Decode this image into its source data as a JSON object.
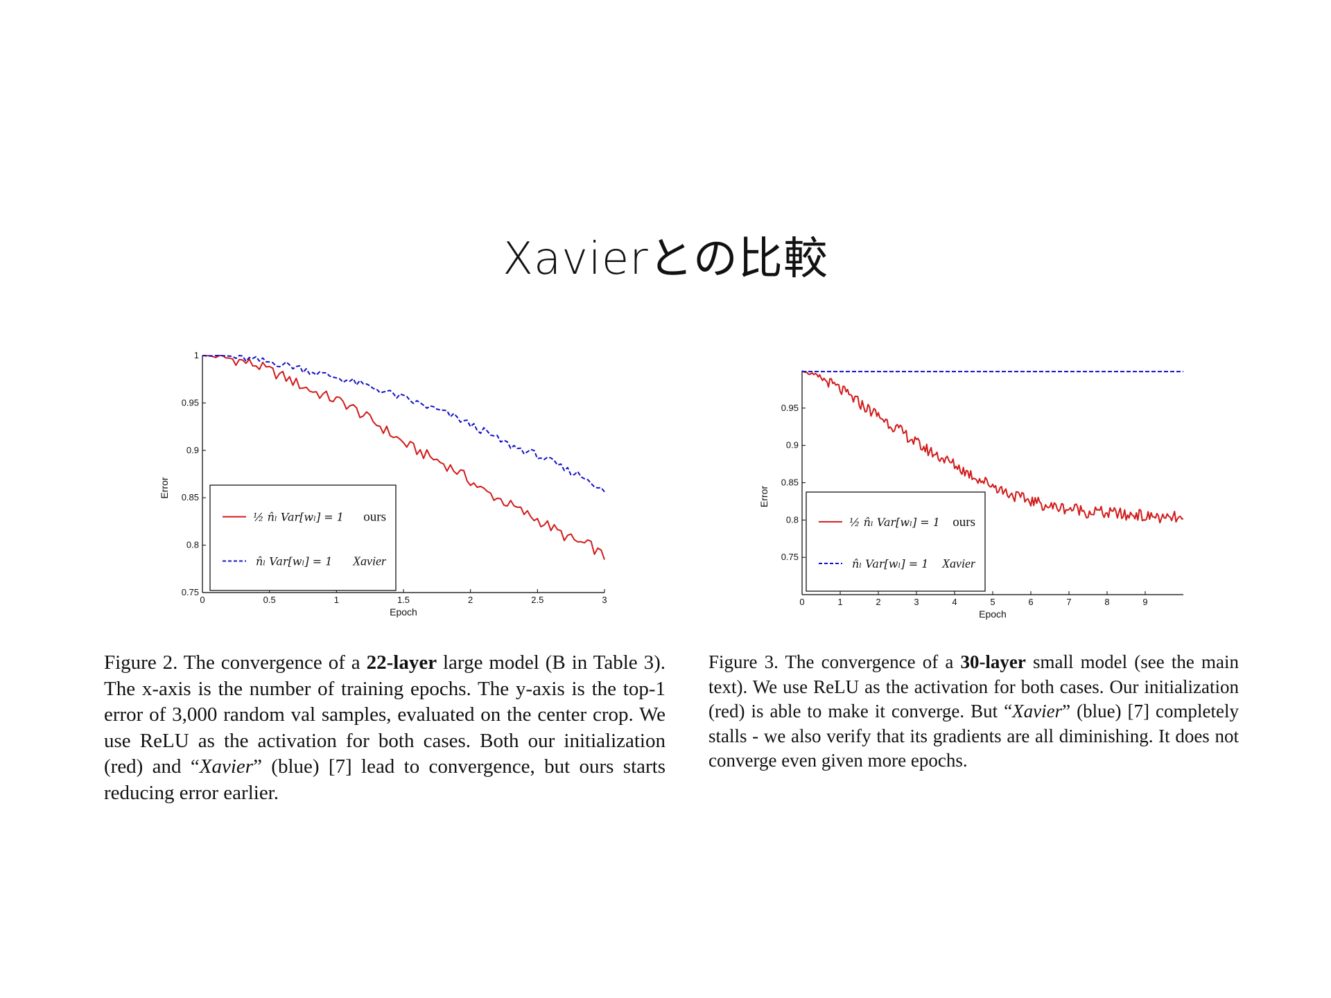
{
  "slide": {
    "title": "Xavierとの比較"
  },
  "captions": {
    "left": {
      "p1": "Figure 2. The convergence of a ",
      "b1": "22-layer",
      "p2": " large model (B in Table 3). The x-axis is the number of training epochs. The y-axis is the top-1 error of 3,000 random val samples, evaluated on the center crop. We use ReLU as the activation for both cases. Both our initialization (red) and “",
      "i1": "Xavier",
      "p3": "” (blue) [7] lead to convergence, but ours starts reducing error earlier."
    },
    "right": {
      "p1": "Figure 3. The convergence of a ",
      "b1": "30-layer",
      "p2": " small model (see the main text). We use ReLU as the activation for both cases. Our initialization (red) is able to make it converge. But “",
      "i1": "Xavier",
      "p3": "” (blue) [7] completely stalls - we also verify that its gradients are all diminishing. It does not converge even given more epochs."
    }
  },
  "colors": {
    "ours": "#d11a1a",
    "xavier": "#1010c8",
    "axis": "#000000"
  },
  "chart_data": [
    {
      "type": "line",
      "title": "",
      "xlabel": "Epoch",
      "ylabel": "Error",
      "xlim": [
        0,
        3
      ],
      "ylim": [
        0.75,
        1
      ],
      "xticks": [
        "0",
        "0.5",
        "1",
        "1.5",
        "2",
        "2.5",
        "3"
      ],
      "yticks": [
        "0.75",
        "0.8",
        "0.85",
        "0.9",
        "0.95",
        "1"
      ],
      "legend": {
        "position": "bottom-left",
        "ours_formula": "½ n̂ₗ Var[wₗ] = 1",
        "ours_tag": "ours",
        "xavier_formula": "n̂ₗ Var[wₗ] = 1",
        "xavier_tag": "Xavier"
      },
      "series": [
        {
          "key": "ours",
          "style": "solid",
          "x": [
            0,
            0.1,
            0.2,
            0.3,
            0.4,
            0.5,
            0.6,
            0.7,
            0.8,
            0.9,
            1.0,
            1.1,
            1.2,
            1.3,
            1.4,
            1.5,
            1.6,
            1.7,
            1.8,
            1.9,
            2.0,
            2.1,
            2.2,
            2.3,
            2.4,
            2.5,
            2.6,
            2.7,
            2.8,
            2.9,
            3.0
          ],
          "y": [
            1.0,
            0.999,
            0.997,
            0.994,
            0.99,
            0.984,
            0.978,
            0.971,
            0.964,
            0.958,
            0.953,
            0.947,
            0.937,
            0.928,
            0.918,
            0.908,
            0.9,
            0.893,
            0.886,
            0.878,
            0.868,
            0.857,
            0.85,
            0.842,
            0.834,
            0.827,
            0.819,
            0.81,
            0.803,
            0.799,
            0.787
          ]
        },
        {
          "key": "xavier",
          "style": "dashed",
          "x": [
            0,
            0.1,
            0.2,
            0.3,
            0.4,
            0.5,
            0.6,
            0.7,
            0.8,
            0.9,
            1.0,
            1.1,
            1.2,
            1.3,
            1.4,
            1.5,
            1.6,
            1.7,
            1.8,
            1.9,
            2.0,
            2.1,
            2.2,
            2.3,
            2.4,
            2.5,
            2.6,
            2.7,
            2.8,
            2.9,
            3.0
          ],
          "y": [
            1.0,
            1.0,
            0.999,
            0.997,
            0.995,
            0.993,
            0.991,
            0.988,
            0.984,
            0.98,
            0.977,
            0.973,
            0.969,
            0.965,
            0.96,
            0.955,
            0.95,
            0.945,
            0.94,
            0.934,
            0.927,
            0.92,
            0.912,
            0.905,
            0.9,
            0.895,
            0.888,
            0.88,
            0.875,
            0.868,
            0.855
          ]
        }
      ]
    },
    {
      "type": "line",
      "title": "",
      "xlabel": "Epoch",
      "ylabel": "Error",
      "xlim": [
        0,
        10
      ],
      "ylim": [
        0.7,
        1.0
      ],
      "xticks": [
        "0",
        "1",
        "2",
        "3",
        "4",
        "5",
        "6",
        "7",
        "8",
        "9"
      ],
      "yticks": [
        "0.75",
        "0.8",
        "0.85",
        "0.9",
        "0.95"
      ],
      "legend": {
        "position": "bottom-left",
        "ours_formula": "½ n̂ₗ Var[wₗ] = 1",
        "ours_tag": "ours",
        "xavier_formula": "n̂ₗ Var[wₗ] = 1",
        "xavier_tag": "Xavier"
      },
      "series": [
        {
          "key": "ours",
          "style": "solid",
          "x": [
            0,
            0.25,
            0.5,
            0.75,
            1.0,
            1.25,
            1.5,
            1.75,
            2.0,
            2.25,
            2.5,
            2.75,
            3.0,
            3.25,
            3.5,
            3.75,
            4.0,
            4.25,
            4.5,
            4.75,
            5.0,
            5.25,
            5.5,
            5.75,
            6.0,
            6.25,
            6.5,
            6.75,
            7.0,
            7.25,
            7.5,
            7.75,
            8.0,
            8.25,
            8.5,
            8.75,
            9.0,
            9.25,
            9.5,
            9.75,
            10.0
          ],
          "y": [
            1.0,
            0.995,
            0.99,
            0.983,
            0.975,
            0.966,
            0.957,
            0.948,
            0.94,
            0.931,
            0.922,
            0.913,
            0.903,
            0.895,
            0.888,
            0.881,
            0.874,
            0.866,
            0.859,
            0.852,
            0.847,
            0.84,
            0.834,
            0.829,
            0.826,
            0.822,
            0.818,
            0.817,
            0.815,
            0.815,
            0.81,
            0.812,
            0.808,
            0.81,
            0.805,
            0.809,
            0.803,
            0.806,
            0.8,
            0.804,
            0.798
          ]
        },
        {
          "key": "xavier",
          "style": "dashed",
          "x": [
            0,
            1,
            2,
            3,
            4,
            5,
            6,
            7,
            8,
            9,
            10
          ],
          "y": [
            0.999,
            0.999,
            0.999,
            0.999,
            0.999,
            0.999,
            0.999,
            0.999,
            0.999,
            0.999,
            0.999
          ]
        }
      ]
    }
  ]
}
